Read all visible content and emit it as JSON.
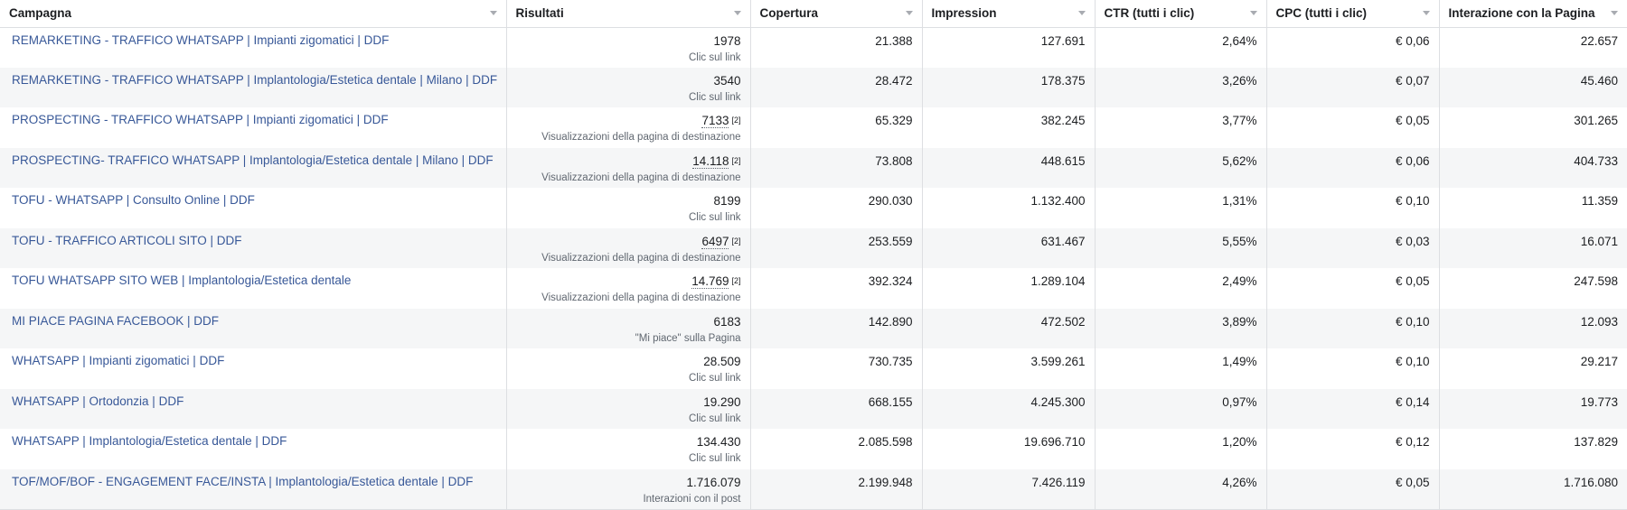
{
  "columns": [
    {
      "label": "Campagna",
      "align": "left"
    },
    {
      "label": "Risultati",
      "align": "left"
    },
    {
      "label": "Copertura",
      "align": "left"
    },
    {
      "label": "Impression",
      "align": "left"
    },
    {
      "label": "CTR (tutti i clic)",
      "align": "left"
    },
    {
      "label": "CPC (tutti i clic)",
      "align": "left"
    },
    {
      "label": "Interazione con la Pagina",
      "align": "left"
    }
  ],
  "rows": [
    {
      "name": "REMARKETING - TRAFFICO WHATSAPP | Impianti zigomatici | DDF",
      "result": "1978",
      "result_note": "",
      "result_type": "Clic sul link",
      "reach": "21.388",
      "impressions": "127.691",
      "ctr": "2,64%",
      "cpc": "€ 0,06",
      "engagement": "22.657"
    },
    {
      "name": "REMARKETING - TRAFFICO WHATSAPP | Implantologia/Estetica dentale | Milano | DDF",
      "result": "3540",
      "result_note": "",
      "result_type": "Clic sul link",
      "reach": "28.472",
      "impressions": "178.375",
      "ctr": "3,26%",
      "cpc": "€ 0,07",
      "engagement": "45.460"
    },
    {
      "name": "PROSPECTING - TRAFFICO WHATSAPP | Impianti zigomatici | DDF",
      "result": "7133",
      "result_note": "[2]",
      "result_type": "Visualizzazioni della pagina di destinazione",
      "reach": "65.329",
      "impressions": "382.245",
      "ctr": "3,77%",
      "cpc": "€ 0,05",
      "engagement": "301.265"
    },
    {
      "name": "PROSPECTING- TRAFFICO WHATSAPP | Implantologia/Estetica dentale | Milano | DDF",
      "result": "14.118",
      "result_note": "[2]",
      "result_type": "Visualizzazioni della pagina di destinazione",
      "reach": "73.808",
      "impressions": "448.615",
      "ctr": "5,62%",
      "cpc": "€ 0,06",
      "engagement": "404.733"
    },
    {
      "name": "TOFU - WHATSAPP | Consulto Online | DDF",
      "result": "8199",
      "result_note": "",
      "result_type": "Clic sul link",
      "reach": "290.030",
      "impressions": "1.132.400",
      "ctr": "1,31%",
      "cpc": "€ 0,10",
      "engagement": "11.359"
    },
    {
      "name": "TOFU - TRAFFICO ARTICOLI SITO | DDF",
      "result": "6497",
      "result_note": "[2]",
      "result_type": "Visualizzazioni della pagina di destinazione",
      "reach": "253.559",
      "impressions": "631.467",
      "ctr": "5,55%",
      "cpc": "€ 0,03",
      "engagement": "16.071"
    },
    {
      "name": "TOFU WHATSAPP SITO WEB | Implantologia/Estetica dentale",
      "result": "14.769",
      "result_note": "[2]",
      "result_type": "Visualizzazioni della pagina di destinazione",
      "reach": "392.324",
      "impressions": "1.289.104",
      "ctr": "2,49%",
      "cpc": "€ 0,05",
      "engagement": "247.598"
    },
    {
      "name": "MI PIACE PAGINA FACEBOOK | DDF",
      "result": "6183",
      "result_note": "",
      "result_type": "\"Mi piace\" sulla Pagina",
      "reach": "142.890",
      "impressions": "472.502",
      "ctr": "3,89%",
      "cpc": "€ 0,10",
      "engagement": "12.093"
    },
    {
      "name": "WHATSAPP | Impianti zigomatici | DDF",
      "result": "28.509",
      "result_note": "",
      "result_type": "Clic sul link",
      "reach": "730.735",
      "impressions": "3.599.261",
      "ctr": "1,49%",
      "cpc": "€ 0,10",
      "engagement": "29.217"
    },
    {
      "name": "WHATSAPP | Ortodonzia | DDF",
      "result": "19.290",
      "result_note": "",
      "result_type": "Clic sul link",
      "reach": "668.155",
      "impressions": "4.245.300",
      "ctr": "0,97%",
      "cpc": "€ 0,14",
      "engagement": "19.773"
    },
    {
      "name": "WHATSAPP | Implantologia/Estetica dentale | DDF",
      "result": "134.430",
      "result_note": "",
      "result_type": "Clic sul link",
      "reach": "2.085.598",
      "impressions": "19.696.710",
      "ctr": "1,20%",
      "cpc": "€ 0,12",
      "engagement": "137.829"
    },
    {
      "name": "TOF/MOF/BOF - ENGAGEMENT FACE/INSTA | Implantologia/Estetica dentale | DDF",
      "result": "1.716.079",
      "result_note": "",
      "result_type": "Interazioni con il post",
      "reach": "2.199.948",
      "impressions": "7.426.119",
      "ctr": "4,26%",
      "cpc": "€ 0,05",
      "engagement": "1.716.080"
    }
  ],
  "icons": {
    "sort": "sort-caret-down-icon"
  },
  "colors": {
    "link": "#385898",
    "row_alt": "#f5f6f7",
    "border": "#dddfe2",
    "muted_text": "#606770"
  }
}
